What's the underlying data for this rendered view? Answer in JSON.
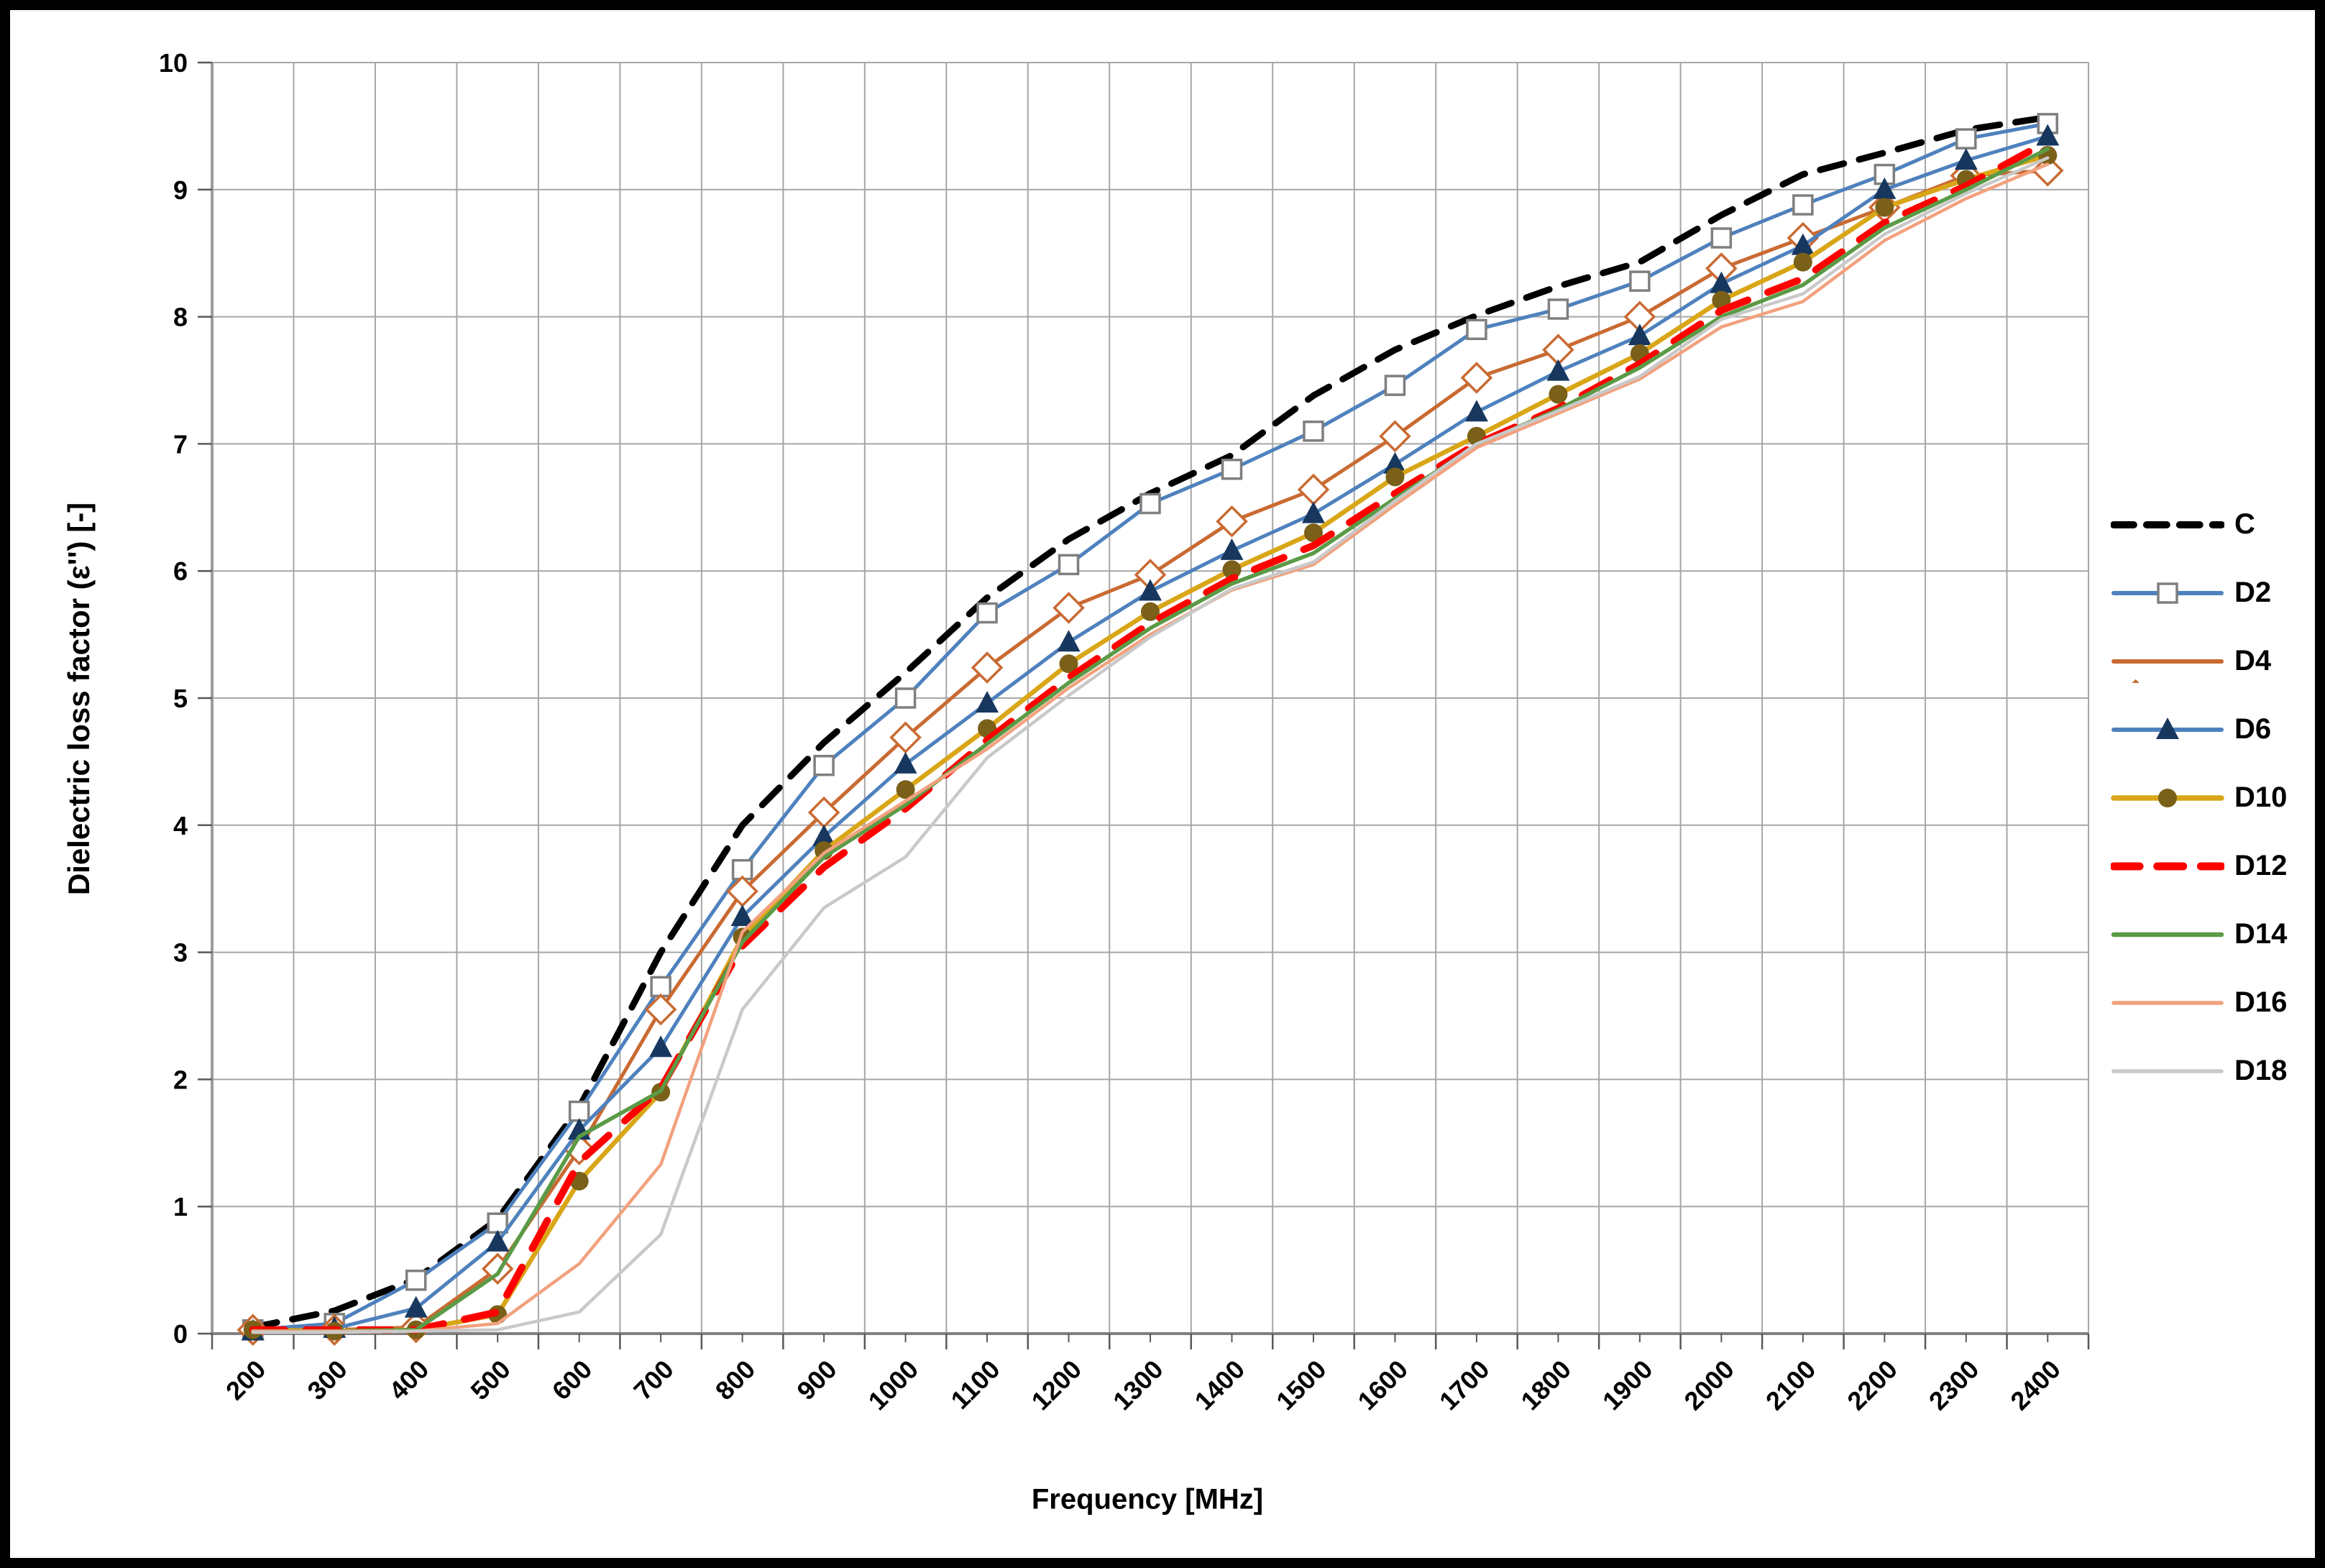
{
  "figure": {
    "background": "#ffffff",
    "border_color": "#000000",
    "grid_color": "#a6a6a6",
    "axis_color": "#808080",
    "tick_color": "#595959",
    "text_color": "#000000"
  },
  "chart_data": {
    "type": "line",
    "title": "",
    "xlabel": "Frequency [MHz]",
    "ylabel": "Dielectric loss factor (ε'') [-]",
    "x_unit": "MHz",
    "ylim": [
      0,
      10
    ],
    "ytick_step": 1,
    "y_ticks": [
      0,
      1,
      2,
      3,
      4,
      5,
      6,
      7,
      8,
      9,
      10
    ],
    "grid": true,
    "legend_position": "right",
    "categories": [
      200,
      300,
      400,
      500,
      600,
      700,
      800,
      900,
      1000,
      1100,
      1200,
      1300,
      1400,
      1500,
      1600,
      1700,
      1800,
      1900,
      2000,
      2100,
      2200,
      2300,
      2400
    ],
    "series": [
      {
        "name": "C",
        "color": "#000000",
        "width": 9,
        "dash": "34 22",
        "marker": "none",
        "values": [
          0.05,
          0.18,
          0.43,
          0.9,
          1.78,
          3.0,
          4.0,
          4.65,
          5.2,
          5.79,
          6.25,
          6.61,
          6.91,
          7.38,
          7.74,
          8.01,
          8.24,
          8.43,
          8.8,
          9.12,
          9.29,
          9.47,
          9.57
        ]
      },
      {
        "name": "D2",
        "color": "#4e81bd",
        "width": 5,
        "dash": "",
        "marker": "square-open",
        "marker_color": "#7f7f7f",
        "marker_fill": "#ffffff",
        "marker_size": 26,
        "values": [
          0.03,
          0.08,
          0.42,
          0.87,
          1.75,
          2.73,
          3.65,
          4.47,
          5.0,
          5.67,
          6.05,
          6.53,
          6.8,
          7.1,
          7.46,
          7.9,
          8.06,
          8.28,
          8.62,
          8.88,
          9.12,
          9.4,
          9.52
        ]
      },
      {
        "name": "D4",
        "color": "#c96a32",
        "width": 5,
        "dash": "",
        "marker": "diamond-open",
        "marker_color": "#c96a32",
        "marker_fill": "#ffffff",
        "marker_size": 28,
        "values": [
          0.03,
          0.03,
          0.05,
          0.51,
          1.45,
          2.55,
          3.48,
          4.1,
          4.69,
          5.24,
          5.71,
          5.97,
          6.39,
          6.64,
          7.06,
          7.52,
          7.74,
          8.0,
          8.38,
          8.62,
          8.86,
          9.11,
          9.15
        ]
      },
      {
        "name": "D6",
        "color": "#4e81bd",
        "width": 5,
        "dash": "",
        "marker": "triangle",
        "marker_color": "#17375e",
        "marker_fill": "#17375e",
        "marker_size": 30,
        "values": [
          0.02,
          0.04,
          0.2,
          0.72,
          1.6,
          2.25,
          3.28,
          3.91,
          4.48,
          4.96,
          5.44,
          5.84,
          6.16,
          6.45,
          6.84,
          7.25,
          7.57,
          7.85,
          8.26,
          8.56,
          9.0,
          9.23,
          9.42
        ]
      },
      {
        "name": "D10",
        "color": "#d9a617",
        "width": 6.5,
        "dash": "",
        "marker": "circle",
        "marker_color": "#7a6018",
        "marker_fill": "#7a6018",
        "marker_size": 26,
        "values": [
          0.03,
          0.02,
          0.03,
          0.15,
          1.2,
          1.9,
          3.12,
          3.8,
          4.28,
          4.76,
          5.27,
          5.68,
          6.01,
          6.3,
          6.74,
          7.06,
          7.39,
          7.71,
          8.13,
          8.43,
          8.86,
          9.08,
          9.27
        ]
      },
      {
        "name": "D12",
        "color": "#fe0000",
        "width": 10,
        "dash": "44 30",
        "marker": "none",
        "values": [
          0.03,
          0.03,
          0.03,
          0.17,
          1.35,
          1.93,
          3.05,
          3.67,
          4.13,
          4.67,
          5.16,
          5.59,
          5.94,
          6.2,
          6.61,
          7.0,
          7.28,
          7.63,
          8.05,
          8.3,
          8.74,
          9.03,
          9.38
        ]
      },
      {
        "name": "D14",
        "color": "#5b9a46",
        "width": 5.5,
        "dash": "",
        "marker": "none",
        "values": [
          0.02,
          0.02,
          0.03,
          0.47,
          1.55,
          1.91,
          3.08,
          3.75,
          4.16,
          4.64,
          5.12,
          5.55,
          5.9,
          6.14,
          6.57,
          6.99,
          7.27,
          7.6,
          8.0,
          8.25,
          8.7,
          9.0,
          9.32
        ]
      },
      {
        "name": "D16",
        "color": "#f2a17e",
        "width": 4.5,
        "dash": "",
        "marker": "none",
        "values": [
          0.02,
          0.02,
          0.02,
          0.08,
          0.55,
          1.33,
          3.16,
          3.78,
          4.19,
          4.6,
          5.08,
          5.5,
          5.85,
          6.05,
          6.52,
          6.97,
          7.24,
          7.51,
          7.92,
          8.12,
          8.6,
          8.93,
          9.2
        ]
      },
      {
        "name": "D18",
        "color": "#c9c9c9",
        "width": 4.5,
        "dash": "",
        "marker": "none",
        "values": [
          0.01,
          0.01,
          0.02,
          0.03,
          0.17,
          0.78,
          2.55,
          3.35,
          3.75,
          4.53,
          5.02,
          5.48,
          5.86,
          6.07,
          6.55,
          7.0,
          7.26,
          7.53,
          7.98,
          8.18,
          8.65,
          8.97,
          9.25
        ]
      }
    ],
    "layout": {
      "plot_left": 281,
      "plot_right": 2891,
      "plot_top": 73,
      "plot_bottom": 1841,
      "legend_item_height": 95
    }
  }
}
